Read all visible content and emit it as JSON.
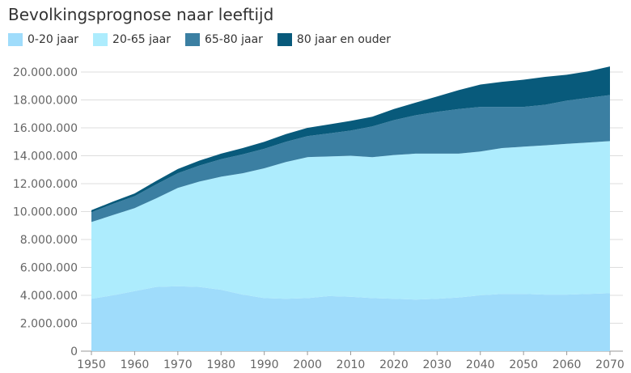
{
  "chart_data": {
    "type": "area",
    "stacked": true,
    "title": "Bevolkingsprognose naar leeftijd",
    "xlabel": "",
    "ylabel": "",
    "xlim": [
      1950,
      2070
    ],
    "ylim": [
      0,
      20000000
    ],
    "grid": true,
    "legend_position": "top-left",
    "x_ticks": [
      "1950",
      "1960",
      "1970",
      "1980",
      "1990",
      "2000",
      "2010",
      "2020",
      "2030",
      "2040",
      "2050",
      "2060",
      "2070"
    ],
    "y_ticks": [
      "0",
      "2.000.000",
      "4.000.000",
      "6.000.000",
      "8.000.000",
      "10.000.000",
      "12.000.000",
      "14.000.000",
      "16.000.000",
      "18.000.000",
      "20.000.000"
    ],
    "x": [
      1950,
      1955,
      1960,
      1965,
      1970,
      1975,
      1980,
      1985,
      1990,
      1995,
      2000,
      2005,
      2010,
      2015,
      2020,
      2025,
      2030,
      2035,
      2040,
      2045,
      2050,
      2055,
      2060,
      2065,
      2070
    ],
    "series": [
      {
        "name": "0-20 jaar",
        "color": "#9fdcfb",
        "values": [
          3750000,
          4000000,
          4300000,
          4600000,
          4650000,
          4600000,
          4400000,
          4050000,
          3800000,
          3750000,
          3800000,
          3950000,
          3900000,
          3800000,
          3750000,
          3700000,
          3750000,
          3850000,
          4000000,
          4100000,
          4100000,
          4050000,
          4050000,
          4100000,
          4150000
        ]
      },
      {
        "name": "20-65 jaar",
        "color": "#adecfd",
        "values": [
          5500000,
          5750000,
          5950000,
          6350000,
          7050000,
          7550000,
          8100000,
          8700000,
          9300000,
          9800000,
          10100000,
          10000000,
          10100000,
          10100000,
          10300000,
          10450000,
          10400000,
          10300000,
          10300000,
          10450000,
          10550000,
          10700000,
          10800000,
          10850000,
          10900000
        ]
      },
      {
        "name": "65-80 jaar",
        "color": "#3b7fa2",
        "values": [
          700000,
          800000,
          850000,
          1000000,
          1050000,
          1150000,
          1250000,
          1350000,
          1400000,
          1450000,
          1500000,
          1650000,
          1800000,
          2200000,
          2500000,
          2750000,
          3000000,
          3200000,
          3200000,
          2950000,
          2850000,
          2900000,
          3100000,
          3200000,
          3300000
        ]
      },
      {
        "name": "80 jaar en ouder",
        "color": "#085a7b",
        "values": [
          150000,
          170000,
          200000,
          250000,
          300000,
          350000,
          400000,
          450000,
          500000,
          550000,
          600000,
          650000,
          700000,
          700000,
          800000,
          900000,
          1100000,
          1350000,
          1600000,
          1800000,
          1950000,
          2000000,
          1850000,
          1900000,
          2050000
        ]
      }
    ]
  },
  "colors": {
    "gridline": "#dddddd",
    "axis": "#999999"
  }
}
